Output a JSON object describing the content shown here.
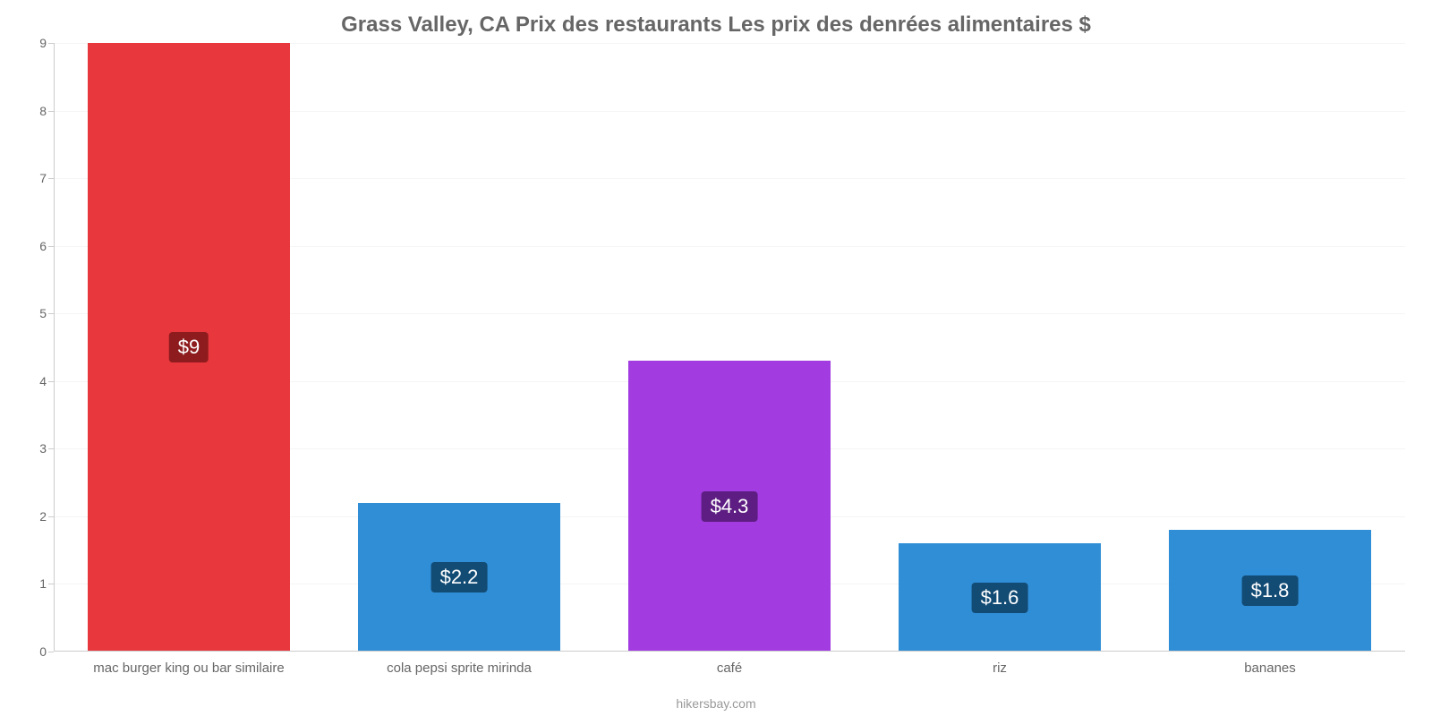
{
  "chart": {
    "type": "bar",
    "title": "Grass Valley, CA Prix des restaurants Les prix des denrées alimentaires $",
    "title_color": "#666666",
    "title_fontsize": 24,
    "title_fontweight": 700,
    "attribution": "hikersbay.com",
    "attribution_color": "#999999",
    "background_color": "#ffffff",
    "axis_color": "#cccccc",
    "grid_color": "#f5f5f5",
    "tick_label_color": "#666666",
    "tick_label_fontsize": 14,
    "x_label_fontsize": 15,
    "bar_label_fontsize": 22,
    "bar_label_text_color": "#ffffff",
    "bar_width": 0.75,
    "ylim": [
      0,
      9
    ],
    "ytick_step": 1,
    "yticks": [
      0,
      1,
      2,
      3,
      4,
      5,
      6,
      7,
      8,
      9
    ],
    "categories": [
      "mac burger king ou bar similaire",
      "cola pepsi sprite mirinda",
      "café",
      "riz",
      "bananes"
    ],
    "values": [
      9,
      2.2,
      4.3,
      1.6,
      1.8
    ],
    "value_labels": [
      "$9",
      "$2.2",
      "$4.3",
      "$1.6",
      "$1.8"
    ],
    "bar_colors": [
      "#e8373d",
      "#2f8ed6",
      "#a23be0",
      "#2f8ed6",
      "#2f8ed6"
    ],
    "label_bg_colors": [
      "#8e1c1f",
      "#124b74",
      "#5d1d82",
      "#124b74",
      "#124b74"
    ]
  }
}
